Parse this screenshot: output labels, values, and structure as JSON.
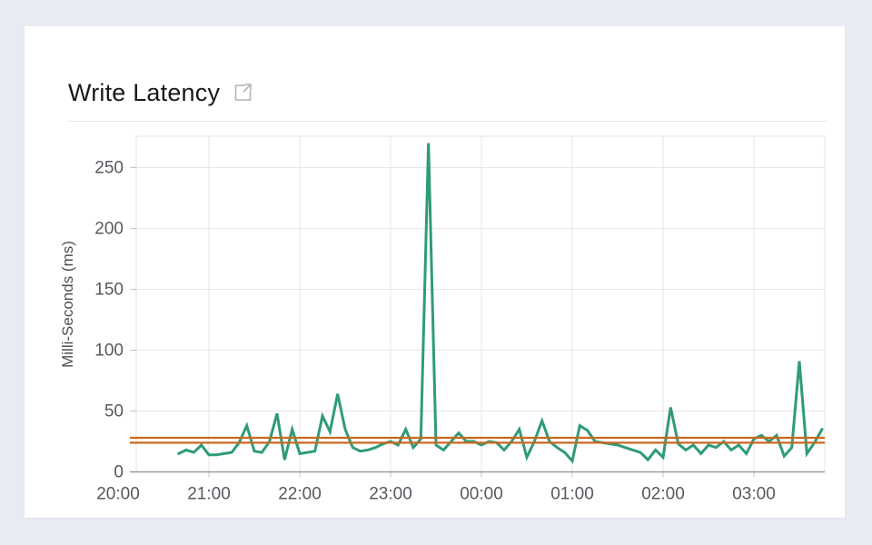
{
  "header": {
    "title": "Write Latency",
    "external_link_icon": "external-link-icon"
  },
  "colors": {
    "page_background": "#e8ebf2",
    "card_background": "#ffffff",
    "series_green": "#2f9b78",
    "threshold_orange": "#c9691f",
    "grid": "#e6e6e6",
    "axis": "#9b9b9b",
    "tick_text": "#55595e",
    "title_text": "#17191c",
    "icon_gray": "#b4b4b4"
  },
  "chart_data": {
    "type": "line",
    "title": "Write Latency",
    "xlabel": "",
    "ylabel": "Milli-Seconds (ms)",
    "grid": true,
    "legend_position": "none",
    "ylim": [
      0,
      275
    ],
    "y_ticks": [
      0,
      50,
      100,
      150,
      200,
      250
    ],
    "x_ticks": [
      "20:00",
      "21:00",
      "22:00",
      "23:00",
      "00:00",
      "01:00",
      "02:00",
      "03:00"
    ],
    "x_range": [
      "20:00",
      "03:47"
    ],
    "series": [
      {
        "name": "write-latency",
        "unit": "ms",
        "color": "#2f9b78",
        "x": [
          "20:40",
          "20:45",
          "20:50",
          "20:55",
          "21:00",
          "21:05",
          "21:10",
          "21:15",
          "21:20",
          "21:25",
          "21:30",
          "21:35",
          "21:40",
          "21:45",
          "21:50",
          "21:55",
          "22:00",
          "22:05",
          "22:10",
          "22:15",
          "22:20",
          "22:25",
          "22:30",
          "22:35",
          "22:40",
          "22:45",
          "22:50",
          "22:55",
          "23:00",
          "23:05",
          "23:10",
          "23:15",
          "23:20",
          "23:25",
          "23:30",
          "23:35",
          "23:40",
          "23:45",
          "23:50",
          "23:55",
          "00:00",
          "00:05",
          "00:10",
          "00:15",
          "00:20",
          "00:25",
          "00:30",
          "00:35",
          "00:40",
          "00:45",
          "00:50",
          "00:55",
          "01:00",
          "01:05",
          "01:10",
          "01:15",
          "01:20",
          "01:25",
          "01:30",
          "01:35",
          "01:40",
          "01:45",
          "01:50",
          "01:55",
          "02:00",
          "02:05",
          "02:10",
          "02:15",
          "02:20",
          "02:25",
          "02:30",
          "02:35",
          "02:40",
          "02:45",
          "02:50",
          "02:55",
          "03:00",
          "03:05",
          "03:10",
          "03:15",
          "03:20",
          "03:25",
          "03:30",
          "03:35",
          "03:40",
          "03:45"
        ],
        "values": [
          15,
          18,
          16,
          22,
          14,
          14,
          15,
          16,
          24,
          38,
          17,
          16,
          25,
          48,
          10,
          35,
          15,
          16,
          17,
          46,
          33,
          64,
          35,
          20,
          17,
          18,
          20,
          23,
          25,
          22,
          35,
          20,
          27,
          270,
          22,
          18,
          25,
          32,
          25,
          25,
          22,
          25,
          24,
          18,
          25,
          35,
          12,
          25,
          42,
          25,
          20,
          16,
          9,
          38,
          34,
          25,
          24,
          23,
          22,
          20,
          18,
          16,
          10,
          18,
          12,
          53,
          23,
          18,
          22,
          15,
          22,
          20,
          25,
          18,
          22,
          15,
          27,
          30,
          25,
          30,
          13,
          20,
          91,
          15,
          24,
          35
        ]
      }
    ],
    "reference_lines": [
      {
        "name": "upper-threshold",
        "value": 28,
        "color": "#c9691f"
      },
      {
        "name": "lower-threshold",
        "value": 24,
        "color": "#c9691f"
      }
    ]
  }
}
